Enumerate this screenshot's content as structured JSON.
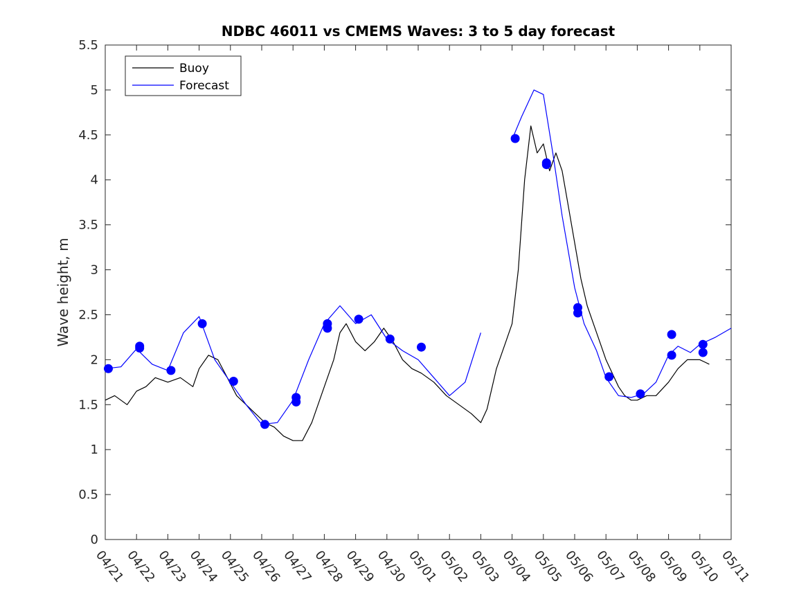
{
  "chart_data": {
    "type": "line",
    "title": "NDBC 46011 vs CMEMS Waves: 3 to 5 day forecast",
    "xlabel": "",
    "ylabel": "Wave height, m",
    "xlim": [
      0,
      20
    ],
    "ylim": [
      0,
      5.5
    ],
    "x_ticks": [
      "04/21",
      "04/22",
      "04/23",
      "04/24",
      "04/25",
      "04/26",
      "04/27",
      "04/28",
      "04/29",
      "04/30",
      "05/01",
      "05/02",
      "05/03",
      "05/04",
      "05/05",
      "05/06",
      "05/07",
      "05/08",
      "05/09",
      "05/10",
      "05/11"
    ],
    "y_ticks": [
      "0",
      "0.5",
      "1",
      "1.5",
      "2",
      "2.5",
      "3",
      "3.5",
      "4",
      "4.5",
      "5",
      "5.5"
    ],
    "grid": false,
    "legend": {
      "placement": "top-left",
      "entries": [
        {
          "label": "Buoy",
          "color": "#000000"
        },
        {
          "label": "Forecast",
          "color": "#0000ff"
        }
      ]
    },
    "series": [
      {
        "name": "Buoy",
        "color": "#000000",
        "points": [
          [
            0,
            1.55
          ],
          [
            0.3,
            1.6
          ],
          [
            0.7,
            1.5
          ],
          [
            1,
            1.65
          ],
          [
            1.3,
            1.7
          ],
          [
            1.6,
            1.8
          ],
          [
            2,
            1.75
          ],
          [
            2.4,
            1.8
          ],
          [
            2.8,
            1.7
          ],
          [
            3,
            1.9
          ],
          [
            3.3,
            2.05
          ],
          [
            3.6,
            2.0
          ],
          [
            3.9,
            1.8
          ],
          [
            4.2,
            1.6
          ],
          [
            4.5,
            1.5
          ],
          [
            4.8,
            1.4
          ],
          [
            5.1,
            1.3
          ],
          [
            5.4,
            1.25
          ],
          [
            5.7,
            1.15
          ],
          [
            6,
            1.1
          ],
          [
            6.3,
            1.1
          ],
          [
            6.6,
            1.3
          ],
          [
            7,
            1.7
          ],
          [
            7.3,
            2.0
          ],
          [
            7.5,
            2.3
          ],
          [
            7.7,
            2.4
          ],
          [
            8,
            2.2
          ],
          [
            8.3,
            2.1
          ],
          [
            8.6,
            2.2
          ],
          [
            8.9,
            2.35
          ],
          [
            9.2,
            2.2
          ],
          [
            9.5,
            2.0
          ],
          [
            9.8,
            1.9
          ],
          [
            10.1,
            1.85
          ],
          [
            10.5,
            1.75
          ],
          [
            10.9,
            1.6
          ],
          [
            11.3,
            1.5
          ],
          [
            11.7,
            1.4
          ],
          [
            12,
            1.3
          ],
          [
            12.2,
            1.45
          ],
          [
            12.5,
            1.9
          ],
          [
            12.8,
            2.2
          ],
          [
            13,
            2.4
          ],
          [
            13.2,
            3.0
          ],
          [
            13.4,
            4.0
          ],
          [
            13.6,
            4.6
          ],
          [
            13.8,
            4.3
          ],
          [
            14,
            4.4
          ],
          [
            14.2,
            4.1
          ],
          [
            14.4,
            4.3
          ],
          [
            14.6,
            4.1
          ],
          [
            14.8,
            3.7
          ],
          [
            15,
            3.3
          ],
          [
            15.2,
            2.9
          ],
          [
            15.4,
            2.6
          ],
          [
            15.6,
            2.4
          ],
          [
            15.8,
            2.2
          ],
          [
            16,
            2.0
          ],
          [
            16.2,
            1.85
          ],
          [
            16.4,
            1.7
          ],
          [
            16.6,
            1.6
          ],
          [
            16.8,
            1.55
          ],
          [
            17,
            1.55
          ],
          [
            17.3,
            1.6
          ],
          [
            17.6,
            1.6
          ],
          [
            18,
            1.75
          ],
          [
            18.3,
            1.9
          ],
          [
            18.6,
            2.0
          ],
          [
            19,
            2.0
          ],
          [
            19.3,
            1.95
          ]
        ]
      },
      {
        "name": "Forecast",
        "color": "#0000ff",
        "points": [
          [
            0,
            1.9
          ],
          [
            0.5,
            1.92
          ],
          [
            1,
            2.12
          ],
          [
            1.5,
            1.95
          ],
          [
            2,
            1.88
          ],
          [
            2.5,
            2.3
          ],
          [
            3,
            2.48
          ],
          [
            3.5,
            2.0
          ],
          [
            4,
            1.75
          ],
          [
            4.5,
            1.5
          ],
          [
            5,
            1.28
          ],
          [
            5.5,
            1.3
          ],
          [
            6,
            1.55
          ],
          [
            6.5,
            2.0
          ],
          [
            7,
            2.4
          ],
          [
            7.5,
            2.6
          ],
          [
            8,
            2.4
          ],
          [
            8.5,
            2.5
          ],
          [
            9,
            2.23
          ],
          [
            9.5,
            2.1
          ],
          [
            10,
            2.0
          ],
          [
            10.5,
            1.8
          ],
          [
            11,
            1.6
          ],
          [
            11.5,
            1.75
          ],
          [
            12,
            2.3
          ]
        ]
      },
      {
        "name": "Forecast",
        "color": "#0000ff",
        "points": [
          [
            13,
            4.45
          ],
          [
            13.3,
            4.7
          ],
          [
            13.7,
            5.0
          ],
          [
            14,
            4.95
          ],
          [
            14.3,
            4.3
          ],
          [
            14.6,
            3.6
          ],
          [
            15,
            2.8
          ],
          [
            15.3,
            2.4
          ],
          [
            15.7,
            2.1
          ],
          [
            16,
            1.8
          ],
          [
            16.4,
            1.6
          ],
          [
            16.8,
            1.58
          ],
          [
            17.2,
            1.62
          ],
          [
            17.6,
            1.75
          ],
          [
            18,
            2.05
          ],
          [
            18.3,
            2.15
          ],
          [
            18.7,
            2.08
          ],
          [
            19,
            2.17
          ],
          [
            19.5,
            2.25
          ],
          [
            20,
            2.35
          ]
        ]
      }
    ],
    "markers": {
      "color": "#0000ff",
      "points": [
        [
          0.1,
          1.9
        ],
        [
          1.1,
          2.15
        ],
        [
          1.1,
          2.13
        ],
        [
          2.1,
          1.88
        ],
        [
          3.1,
          2.4
        ],
        [
          4.1,
          1.76
        ],
        [
          5.1,
          1.28
        ],
        [
          6.1,
          1.58
        ],
        [
          6.1,
          1.53
        ],
        [
          7.1,
          2.4
        ],
        [
          7.1,
          2.35
        ],
        [
          8.1,
          2.45
        ],
        [
          9.1,
          2.23
        ],
        [
          10.1,
          2.14
        ],
        [
          13.1,
          4.46
        ],
        [
          14.1,
          4.19
        ],
        [
          14.1,
          4.17
        ],
        [
          15.1,
          2.58
        ],
        [
          15.1,
          2.52
        ],
        [
          16.1,
          1.81
        ],
        [
          17.1,
          1.62
        ],
        [
          18.1,
          2.28
        ],
        [
          18.1,
          2.05
        ],
        [
          19.1,
          2.17
        ],
        [
          19.1,
          2.08
        ]
      ]
    }
  }
}
